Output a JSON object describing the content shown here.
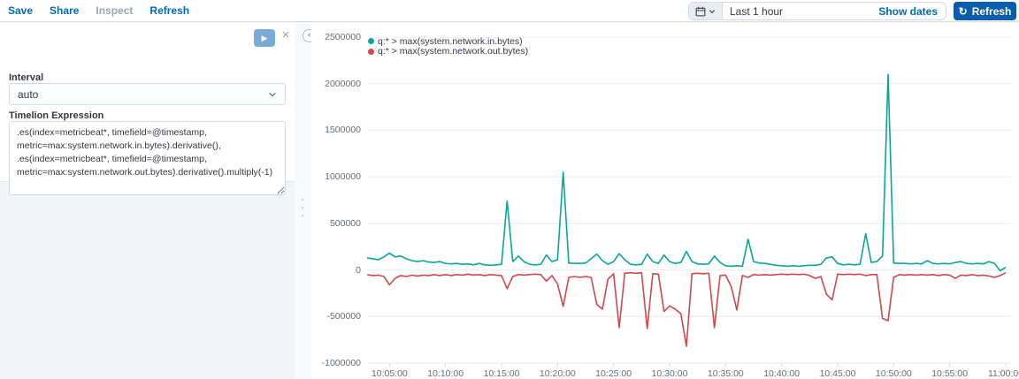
{
  "top_bar": {
    "menu": [
      {
        "label": "Save",
        "disabled": false
      },
      {
        "label": "Share",
        "disabled": false
      },
      {
        "label": "Inspect",
        "disabled": true
      },
      {
        "label": "Refresh",
        "disabled": false
      }
    ],
    "date_picker": {
      "value": "Last 1 hour",
      "show_dates_label": "Show dates"
    },
    "refresh_button": {
      "label": "Refresh",
      "icon": "refresh-icon"
    }
  },
  "editor": {
    "interval_label": "Interval",
    "interval_value": "auto",
    "expression_label": "Timelion Expression",
    "expression_value": ".es(index=metricbeat*, timefield=@timestamp,\nmetric=max:system.network.in.bytes).derivative(),\n.es(index=metricbeat*, timefield=@timestamp,\nmetric=max:system.network.out.bytes).derivative().multiply(-1)"
  },
  "colors": {
    "link_blue": "#006bb4",
    "button_blue": "#0b5cab",
    "series_teal": "#0aa69b",
    "series_red": "#cd4a4c",
    "grid": "#e8ebf0",
    "axis_text": "#636c79"
  },
  "chart_data": {
    "type": "line",
    "title": "",
    "xlabel": "",
    "ylabel": "",
    "grid": true,
    "legend_position": "top-left",
    "x_start": "10:03:00",
    "x_step_seconds": 30,
    "ylim": [
      -1000000,
      2500000
    ],
    "y_ticks": [
      2500000,
      2000000,
      1500000,
      1000000,
      500000,
      0,
      -500000,
      -1000000
    ],
    "x_ticks": [
      [
        4,
        "10:05:00"
      ],
      [
        14,
        "10:10:00"
      ],
      [
        24,
        "10:15:00"
      ],
      [
        34,
        "10:20:00"
      ],
      [
        44,
        "10:25:00"
      ],
      [
        54,
        "10:30:00"
      ],
      [
        64,
        "10:35:00"
      ],
      [
        74,
        "10:40:00"
      ],
      [
        84,
        "10:45:00"
      ],
      [
        94,
        "10:50:00"
      ],
      [
        104,
        "10:55:00"
      ],
      [
        114,
        "11:00:00"
      ]
    ],
    "series": [
      {
        "name": "q:* > max(system.network.in.bytes)",
        "color": "#0aa69b",
        "values": [
          130000,
          120000,
          110000,
          140000,
          180000,
          140000,
          150000,
          120000,
          100000,
          90000,
          100000,
          85000,
          80000,
          90000,
          70000,
          65000,
          70000,
          60000,
          65000,
          55000,
          70000,
          55000,
          50000,
          55000,
          60000,
          740000,
          90000,
          150000,
          90000,
          60000,
          55000,
          60000,
          160000,
          90000,
          110000,
          1050000,
          75000,
          70000,
          70000,
          75000,
          120000,
          170000,
          100000,
          60000,
          90000,
          175000,
          110000,
          60000,
          55000,
          60000,
          170000,
          90000,
          70000,
          160000,
          90000,
          70000,
          80000,
          200000,
          90000,
          65000,
          60000,
          65000,
          150000,
          80000,
          45000,
          40000,
          45000,
          40000,
          330000,
          90000,
          75000,
          70000,
          60000,
          50000,
          45000,
          40000,
          45000,
          40000,
          45000,
          50000,
          50000,
          60000,
          130000,
          140000,
          70000,
          55000,
          60000,
          55000,
          60000,
          390000,
          80000,
          90000,
          150000,
          2100000,
          75000,
          70000,
          70000,
          65000,
          70000,
          65000,
          100000,
          70000,
          65000,
          70000,
          65000,
          80000,
          90000,
          70000,
          65000,
          70000,
          65000,
          90000,
          70000,
          -10000,
          30000
        ]
      },
      {
        "name": "q:* > max(system.network.out.bytes)",
        "color": "#cd4a4c",
        "values": [
          -50000,
          -60000,
          -55000,
          -70000,
          -160000,
          -90000,
          -60000,
          -70000,
          -55000,
          -65000,
          -55000,
          -60000,
          -50000,
          -60000,
          -50000,
          -60000,
          -50000,
          -55000,
          -45000,
          -55000,
          -50000,
          -60000,
          -50000,
          -55000,
          -60000,
          -200000,
          -70000,
          -50000,
          -55000,
          -50000,
          -45000,
          -50000,
          -120000,
          -60000,
          -150000,
          -390000,
          -80000,
          -70000,
          -80000,
          -70000,
          -80000,
          -370000,
          -420000,
          -100000,
          -40000,
          -620000,
          -35000,
          -30000,
          -35000,
          -30000,
          -630000,
          -40000,
          -45000,
          -445000,
          -385000,
          -420000,
          -470000,
          -820000,
          -40000,
          -35000,
          -40000,
          -35000,
          -620000,
          -60000,
          -55000,
          -180000,
          -430000,
          -60000,
          -80000,
          -50000,
          -55000,
          -50000,
          -55000,
          -50000,
          -45000,
          -50000,
          -45000,
          -50000,
          -45000,
          -60000,
          -90000,
          -70000,
          -260000,
          -320000,
          -45000,
          -50000,
          -45000,
          -50000,
          -45000,
          -60000,
          -50000,
          -50000,
          -520000,
          -545000,
          -80000,
          -50000,
          -55000,
          -50000,
          -55000,
          -50000,
          -55000,
          -50000,
          -60000,
          -50000,
          -55000,
          -90000,
          -55000,
          -60000,
          -50000,
          -60000,
          -55000,
          -65000,
          -80000,
          -60000,
          -30000
        ]
      }
    ]
  }
}
